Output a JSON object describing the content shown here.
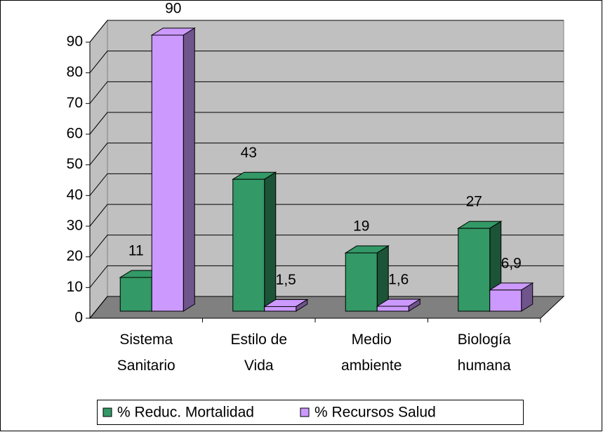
{
  "chart_data": {
    "type": "bar3d",
    "categories": [
      "Sistema Sanitario",
      "Estilo de Vida",
      "Medio ambiente",
      "Biología humana"
    ],
    "series": [
      {
        "name": "% Reduc. Mortalidad",
        "color": "#339966",
        "values": [
          11,
          43,
          19,
          27
        ]
      },
      {
        "name": "% Recursos Salud",
        "color": "#cc99ff",
        "values": [
          90,
          1.5,
          1.6,
          6.9
        ],
        "value_labels": [
          "90",
          "1,5",
          "1,6",
          "6,9"
        ]
      }
    ],
    "ylim": [
      0,
      90
    ],
    "yticks": [
      0,
      10,
      20,
      30,
      40,
      50,
      60,
      70,
      80,
      90
    ],
    "grid": true,
    "legend": "bottom"
  }
}
